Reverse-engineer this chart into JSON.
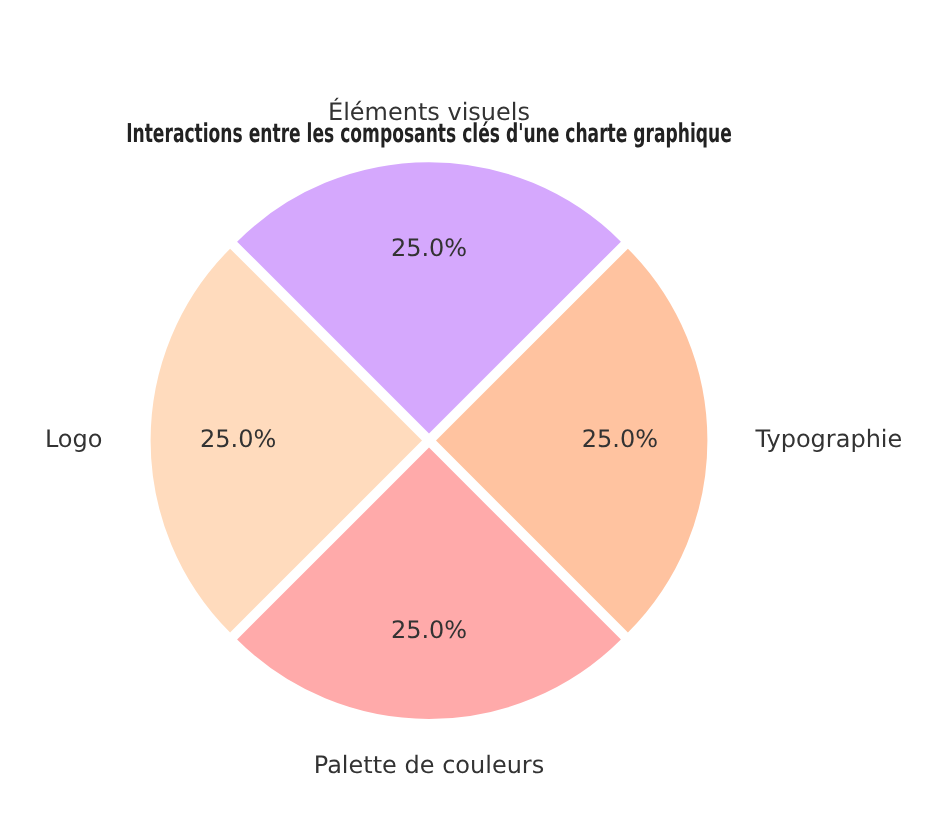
{
  "chart_data": {
    "type": "pie",
    "title": "Interactions entre les composants clés d'une charte graphique",
    "categories": [
      "Éléments visuels",
      "Typographie",
      "Palette de couleurs",
      "Logo"
    ],
    "values": [
      25,
      25,
      25,
      25
    ],
    "colors": [
      "#d5a8fd",
      "#ffc3a0",
      "#ffaaaa",
      "#ffdbbd"
    ],
    "value_labels": [
      "25.0%",
      "25.0%",
      "25.0%",
      "25.0%"
    ],
    "legend": false
  }
}
